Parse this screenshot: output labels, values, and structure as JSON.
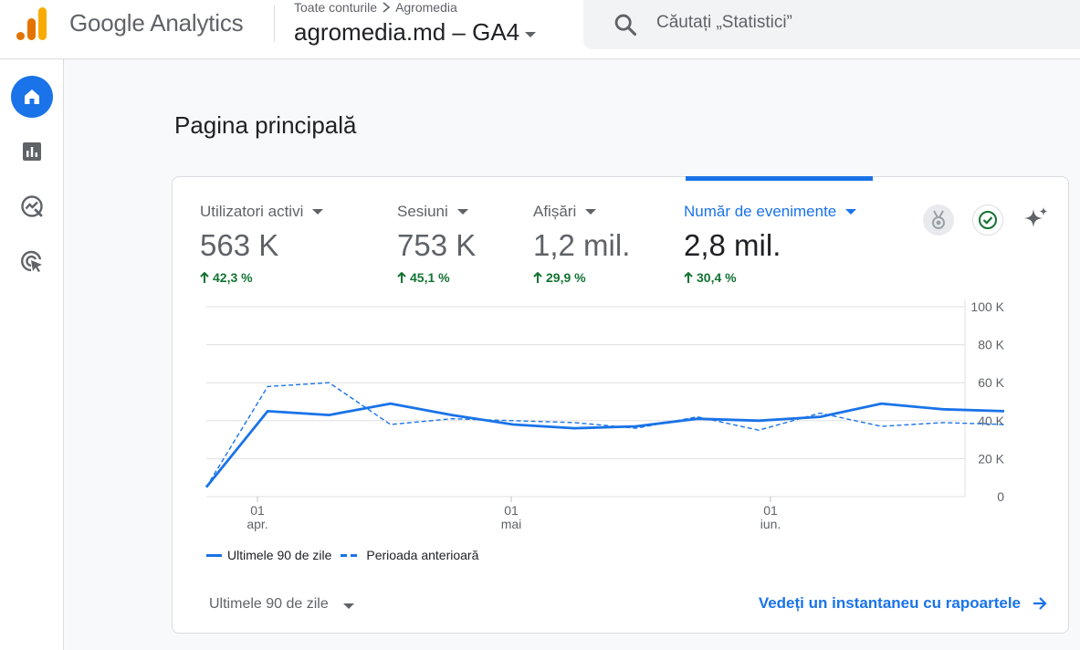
{
  "header": {
    "product_name": "Google Analytics",
    "breadcrumb": {
      "account": "Toate conturile",
      "separator": ">",
      "property_group": "Agromedia"
    },
    "property_name": "agromedia.md – GA4",
    "search": {
      "placeholder": "Căutați „Statistici”"
    }
  },
  "nav": {
    "items": [
      "home",
      "reports",
      "explore",
      "advertising"
    ],
    "active": "home"
  },
  "page": {
    "title": "Pagina principală"
  },
  "metrics": [
    {
      "label": "Utilizatori activi",
      "value": "563 K",
      "change": "42,3 %"
    },
    {
      "label": "Sesiuni",
      "value": "753 K",
      "change": "45,1 %"
    },
    {
      "label": "Afișări",
      "value": "1,2 mil.",
      "change": "29,9 %"
    },
    {
      "label": "Număr de evenimente",
      "value": "2,8 mil.",
      "change": "30,4 %",
      "active": true
    }
  ],
  "colors": {
    "accent": "#1a73e8",
    "positive": "#137333"
  },
  "icons": {
    "badge": "medal-icon",
    "check": "check-circle-icon",
    "insights": "sparkle-icon"
  },
  "chart_data": {
    "type": "line",
    "x_ticks": [
      {
        "day": "01",
        "month": "apr."
      },
      {
        "day": "01",
        "month": "mai"
      },
      {
        "day": "01",
        "month": "iun."
      }
    ],
    "y_ticks": [
      "0",
      "20 K",
      "40 K",
      "60 K",
      "80 K",
      "100 K"
    ],
    "ylim": [
      0,
      100000
    ],
    "series": [
      {
        "name": "Ultimele 90 de zile",
        "style": "solid",
        "values": [
          5000,
          45000,
          43000,
          49000,
          43000,
          38000,
          36000,
          37000,
          41000,
          40000,
          42000,
          49000,
          46000,
          45000
        ]
      },
      {
        "name": "Perioada anterioară",
        "style": "dashed",
        "values": [
          5000,
          58000,
          60000,
          38000,
          41000,
          40000,
          39000,
          36000,
          42000,
          35000,
          44000,
          37000,
          39000,
          38000
        ]
      }
    ],
    "grid": true
  },
  "footer": {
    "range_label": "Ultimele 90 de zile",
    "report_link": "Vedeți un instantaneu cu rapoartele"
  }
}
